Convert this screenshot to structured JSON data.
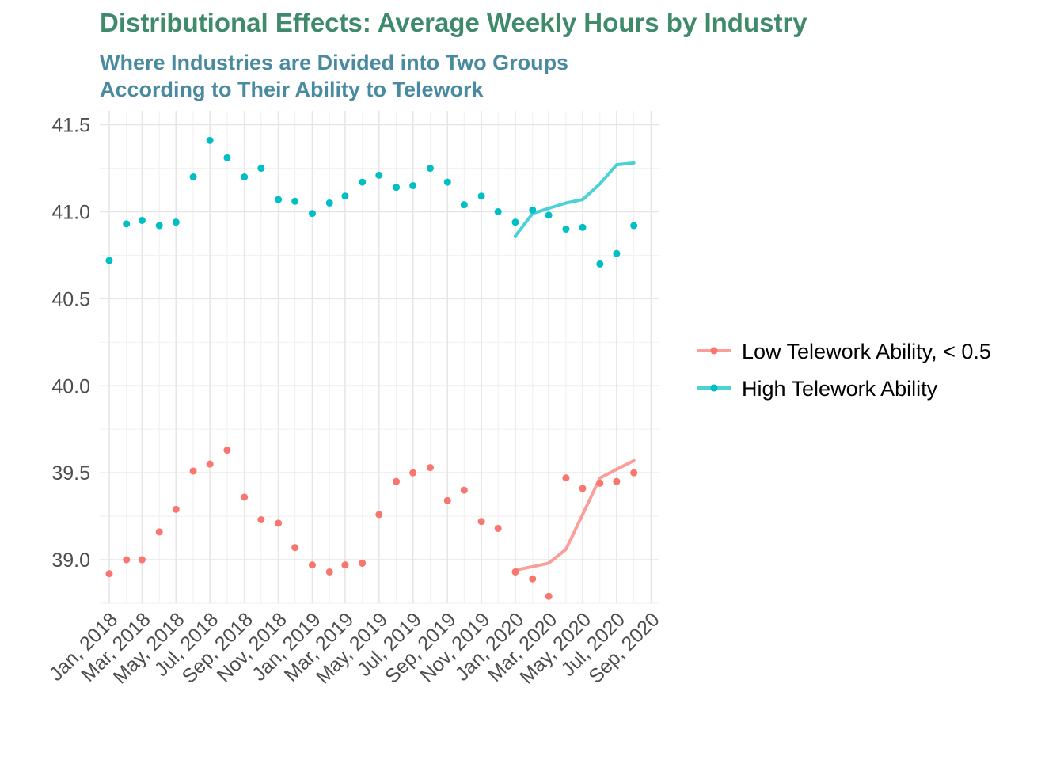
{
  "chart_data": {
    "type": "line",
    "title": "Distributional Effects: Average Weekly Hours by Industry",
    "subtitle_lines": [
      "Where Industries are Divided into Two Groups",
      "According to Their Ability to Telework"
    ],
    "xlabel": "",
    "ylabel": "",
    "x_tick_labels": [
      "Jan, 2018",
      "Mar, 2018",
      "May, 2018",
      "Jul, 2018",
      "Sep, 2018",
      "Nov, 2018",
      "Jan, 2019",
      "Mar, 2019",
      "May, 2019",
      "Jul, 2019",
      "Sep, 2019",
      "Nov, 2019",
      "Jan, 2020",
      "Mar, 2020",
      "May, 2020",
      "Jul, 2020",
      "Sep, 2020"
    ],
    "y_ticks": [
      39.0,
      39.5,
      40.0,
      40.5,
      41.0,
      41.5
    ],
    "y_tick_labels": [
      "39.0",
      "39.5",
      "40.0",
      "40.5",
      "41.0",
      "41.5"
    ],
    "ylim": [
      38.75,
      41.58
    ],
    "xlim": [
      "2017-12-15",
      "2020-09-16"
    ],
    "grid": true,
    "legend_position": "right",
    "series": [
      {
        "name": "Low Telework Ability, < 0.5",
        "color": "#f8766d",
        "points": [
          {
            "x": "2018-01-01",
            "y": 38.92
          },
          {
            "x": "2018-02-01",
            "y": 39.0
          },
          {
            "x": "2018-03-01",
            "y": 39.0
          },
          {
            "x": "2018-04-01",
            "y": 39.16
          },
          {
            "x": "2018-05-01",
            "y": 39.29
          },
          {
            "x": "2018-06-01",
            "y": 39.51
          },
          {
            "x": "2018-07-01",
            "y": 39.55
          },
          {
            "x": "2018-08-01",
            "y": 39.63
          },
          {
            "x": "2018-09-01",
            "y": 39.36
          },
          {
            "x": "2018-10-01",
            "y": 39.23
          },
          {
            "x": "2018-11-01",
            "y": 39.21
          },
          {
            "x": "2018-12-01",
            "y": 39.07
          },
          {
            "x": "2019-01-01",
            "y": 38.97
          },
          {
            "x": "2019-02-01",
            "y": 38.93
          },
          {
            "x": "2019-03-01",
            "y": 38.97
          },
          {
            "x": "2019-04-01",
            "y": 38.98
          },
          {
            "x": "2019-05-01",
            "y": 39.26
          },
          {
            "x": "2019-06-01",
            "y": 39.45
          },
          {
            "x": "2019-07-01",
            "y": 39.5
          },
          {
            "x": "2019-08-01",
            "y": 39.53
          },
          {
            "x": "2019-09-01",
            "y": 39.34
          },
          {
            "x": "2019-10-01",
            "y": 39.4
          },
          {
            "x": "2019-11-01",
            "y": 39.22
          },
          {
            "x": "2019-12-01",
            "y": 39.18
          },
          {
            "x": "2020-01-01",
            "y": 38.93
          },
          {
            "x": "2020-02-01",
            "y": 38.89
          },
          {
            "x": "2020-03-01",
            "y": 38.79
          },
          {
            "x": "2020-04-01",
            "y": 39.47
          },
          {
            "x": "2020-05-01",
            "y": 39.41
          },
          {
            "x": "2020-06-01",
            "y": 39.44
          },
          {
            "x": "2020-07-01",
            "y": 39.45
          },
          {
            "x": "2020-08-01",
            "y": 39.5
          }
        ],
        "line": [
          {
            "x": "2020-01-01",
            "y": 38.94
          },
          {
            "x": "2020-02-01",
            "y": 38.96
          },
          {
            "x": "2020-03-01",
            "y": 38.98
          },
          {
            "x": "2020-04-01",
            "y": 39.06
          },
          {
            "x": "2020-05-01",
            "y": 39.26
          },
          {
            "x": "2020-06-01",
            "y": 39.47
          },
          {
            "x": "2020-07-01",
            "y": 39.52
          },
          {
            "x": "2020-08-01",
            "y": 39.57
          }
        ]
      },
      {
        "name": "High Telework Ability",
        "color": "#00bfc4",
        "points": [
          {
            "x": "2018-01-01",
            "y": 40.72
          },
          {
            "x": "2018-02-01",
            "y": 40.93
          },
          {
            "x": "2018-03-01",
            "y": 40.95
          },
          {
            "x": "2018-04-01",
            "y": 40.92
          },
          {
            "x": "2018-05-01",
            "y": 40.94
          },
          {
            "x": "2018-06-01",
            "y": 41.2
          },
          {
            "x": "2018-07-01",
            "y": 41.41
          },
          {
            "x": "2018-08-01",
            "y": 41.31
          },
          {
            "x": "2018-09-01",
            "y": 41.2
          },
          {
            "x": "2018-10-01",
            "y": 41.25
          },
          {
            "x": "2018-11-01",
            "y": 41.07
          },
          {
            "x": "2018-12-01",
            "y": 41.06
          },
          {
            "x": "2019-01-01",
            "y": 40.99
          },
          {
            "x": "2019-02-01",
            "y": 41.05
          },
          {
            "x": "2019-03-01",
            "y": 41.09
          },
          {
            "x": "2019-04-01",
            "y": 41.17
          },
          {
            "x": "2019-05-01",
            "y": 41.21
          },
          {
            "x": "2019-06-01",
            "y": 41.14
          },
          {
            "x": "2019-07-01",
            "y": 41.15
          },
          {
            "x": "2019-08-01",
            "y": 41.25
          },
          {
            "x": "2019-09-01",
            "y": 41.17
          },
          {
            "x": "2019-10-01",
            "y": 41.04
          },
          {
            "x": "2019-11-01",
            "y": 41.09
          },
          {
            "x": "2019-12-01",
            "y": 41.0
          },
          {
            "x": "2020-01-01",
            "y": 40.94
          },
          {
            "x": "2020-02-01",
            "y": 41.01
          },
          {
            "x": "2020-03-01",
            "y": 40.98
          },
          {
            "x": "2020-04-01",
            "y": 40.9
          },
          {
            "x": "2020-05-01",
            "y": 40.91
          },
          {
            "x": "2020-06-01",
            "y": 40.7
          },
          {
            "x": "2020-07-01",
            "y": 40.76
          },
          {
            "x": "2020-08-01",
            "y": 40.92
          }
        ],
        "line": [
          {
            "x": "2020-01-01",
            "y": 40.86
          },
          {
            "x": "2020-02-01",
            "y": 40.99
          },
          {
            "x": "2020-03-01",
            "y": 41.02
          },
          {
            "x": "2020-04-01",
            "y": 41.05
          },
          {
            "x": "2020-05-01",
            "y": 41.07
          },
          {
            "x": "2020-06-01",
            "y": 41.16
          },
          {
            "x": "2020-07-01",
            "y": 41.27
          },
          {
            "x": "2020-08-01",
            "y": 41.28
          }
        ]
      }
    ]
  }
}
